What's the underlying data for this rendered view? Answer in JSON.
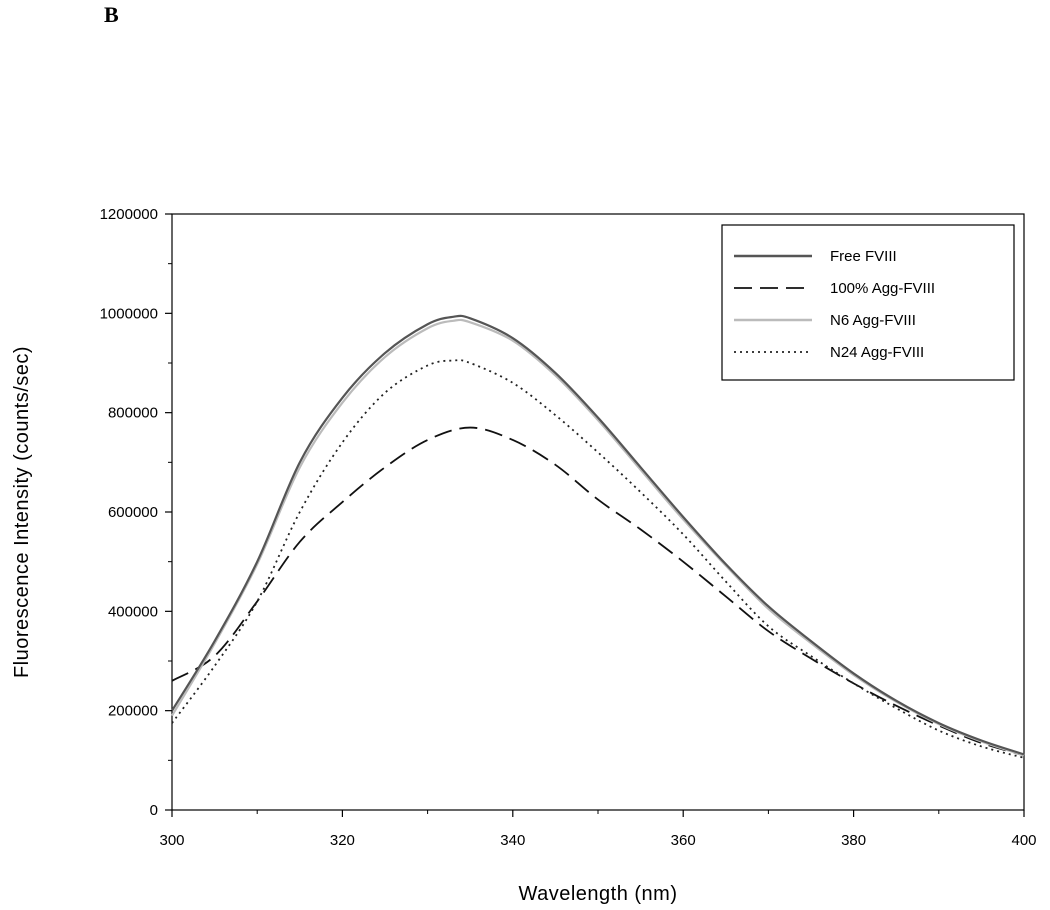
{
  "panel_label": "B",
  "chart_data": {
    "type": "line",
    "title": "",
    "xlabel": "Wavelength (nm)",
    "ylabel": "Fluorescence Intensity (counts/sec)",
    "xlim": [
      300,
      400
    ],
    "ylim": [
      0,
      1200000
    ],
    "xticks": [
      "300",
      "320",
      "340",
      "360",
      "380",
      "400"
    ],
    "yticks": [
      "0",
      "200000",
      "400000",
      "600000",
      "800000",
      "1000000",
      "1200000"
    ],
    "grid": false,
    "legend_position": "top-right",
    "series": [
      {
        "name": "Free FVIII",
        "color": "#555555",
        "style": "solid",
        "x": [
          300,
          305,
          310,
          315,
          320,
          325,
          330,
          333,
          335,
          340,
          345,
          350,
          355,
          360,
          365,
          370,
          375,
          380,
          385,
          390,
          395,
          400
        ],
        "y": [
          200000,
          340000,
          500000,
          700000,
          830000,
          920000,
          978000,
          993000,
          990000,
          950000,
          880000,
          790000,
          690000,
          590000,
          495000,
          410000,
          340000,
          275000,
          220000,
          175000,
          140000,
          112000
        ]
      },
      {
        "name": "100% Agg-FVIII",
        "color": "#111111",
        "style": "dashed",
        "x": [
          300,
          305,
          310,
          315,
          320,
          325,
          330,
          335,
          340,
          345,
          350,
          355,
          360,
          365,
          370,
          375,
          380,
          385,
          390,
          395,
          400
        ],
        "y": [
          260000,
          310000,
          420000,
          540000,
          620000,
          690000,
          745000,
          770000,
          745000,
          695000,
          625000,
          565000,
          500000,
          430000,
          360000,
          305000,
          255000,
          210000,
          170000,
          135000,
          110000
        ]
      },
      {
        "name": "N6 Agg-FVIII",
        "color": "#bbbbbb",
        "style": "solid",
        "x": [
          300,
          305,
          310,
          315,
          320,
          325,
          330,
          333,
          335,
          340,
          345,
          350,
          355,
          360,
          365,
          370,
          375,
          380,
          385,
          390,
          395,
          400
        ],
        "y": [
          190000,
          335000,
          495000,
          690000,
          820000,
          912000,
          970000,
          985000,
          982000,
          945000,
          875000,
          785000,
          685000,
          585000,
          492000,
          405000,
          336000,
          272000,
          218000,
          173000,
          138000,
          110000
        ]
      },
      {
        "name": "N24 Agg-FVIII",
        "color": "#222222",
        "style": "dotted",
        "x": [
          300,
          305,
          310,
          315,
          320,
          325,
          330,
          333,
          335,
          340,
          345,
          350,
          355,
          360,
          365,
          370,
          375,
          380,
          385,
          390,
          395,
          400
        ],
        "y": [
          175000,
          290000,
          420000,
          600000,
          740000,
          840000,
          895000,
          905000,
          900000,
          860000,
          795000,
          720000,
          640000,
          555000,
          460000,
          370000,
          310000,
          255000,
          205000,
          160000,
          128000,
          105000
        ]
      }
    ]
  }
}
